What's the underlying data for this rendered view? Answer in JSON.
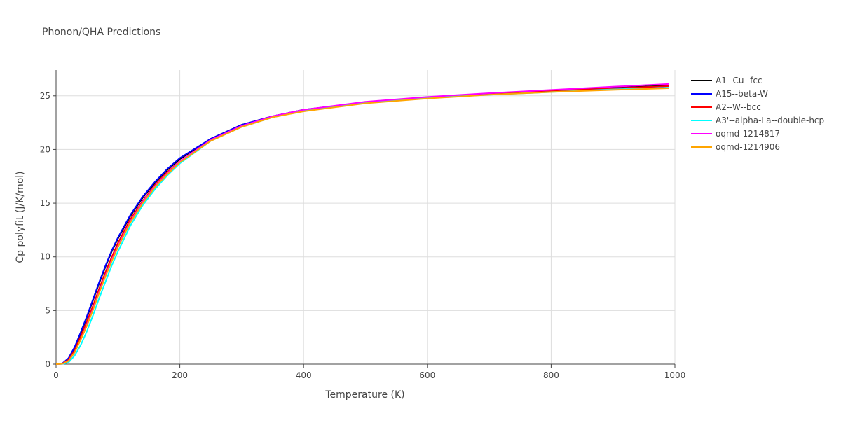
{
  "chart_data": {
    "type": "line",
    "title": "Phonon/QHA Predictions",
    "x_label": "Temperature (K)",
    "y_label": "Cp polyfit (J/K/mol)",
    "x": [
      0,
      10,
      20,
      30,
      40,
      50,
      60,
      70,
      80,
      90,
      100,
      120,
      140,
      160,
      180,
      200,
      250,
      300,
      350,
      400,
      500,
      600,
      700,
      800,
      900,
      990
    ],
    "series": [
      {
        "name": "A1--Cu--fcc",
        "color": "#000000",
        "values": [
          0,
          0.05,
          0.5,
          1.5,
          2.9,
          4.4,
          6.0,
          7.6,
          9.1,
          10.5,
          11.7,
          13.8,
          15.5,
          16.9,
          18.1,
          19.1,
          21.0,
          22.3,
          23.1,
          23.7,
          24.4,
          24.85,
          25.2,
          25.5,
          25.75,
          25.95
        ]
      },
      {
        "name": "A15--beta-W",
        "color": "#0000ff",
        "values": [
          0,
          0.06,
          0.55,
          1.6,
          3.0,
          4.5,
          6.1,
          7.7,
          9.2,
          10.6,
          11.8,
          13.9,
          15.6,
          17.0,
          18.2,
          19.2,
          21.0,
          22.3,
          23.1,
          23.7,
          24.4,
          24.85,
          25.2,
          25.5,
          25.7,
          25.9
        ]
      },
      {
        "name": "A2--W--bcc",
        "color": "#ff0000",
        "values": [
          0,
          0.04,
          0.4,
          1.3,
          2.6,
          4.0,
          5.5,
          7.1,
          8.6,
          10.0,
          11.3,
          13.5,
          15.2,
          16.7,
          17.9,
          18.9,
          20.9,
          22.2,
          23.0,
          23.6,
          24.35,
          24.8,
          25.15,
          25.45,
          25.7,
          25.9
        ]
      },
      {
        "name": "A3'--alpha-La--double-hcp",
        "color": "#00ffff",
        "values": [
          0,
          0.02,
          0.15,
          0.8,
          1.8,
          3.1,
          4.6,
          6.2,
          7.7,
          9.2,
          10.5,
          12.9,
          14.8,
          16.3,
          17.6,
          18.7,
          20.8,
          22.1,
          23.0,
          23.6,
          24.35,
          24.8,
          25.1,
          25.35,
          25.6,
          25.75
        ]
      },
      {
        "name": "oqmd-1214817",
        "color": "#ff00ff",
        "values": [
          0,
          0.03,
          0.3,
          1.1,
          2.3,
          3.7,
          5.2,
          6.8,
          8.3,
          9.7,
          11.0,
          13.3,
          15.1,
          16.6,
          17.8,
          18.9,
          20.9,
          22.2,
          23.1,
          23.7,
          24.45,
          24.9,
          25.25,
          25.55,
          25.85,
          26.1
        ]
      },
      {
        "name": "oqmd-1214906",
        "color": "#ffa500",
        "values": [
          0,
          0.03,
          0.3,
          1.1,
          2.3,
          3.6,
          5.1,
          6.7,
          8.2,
          9.6,
          10.9,
          13.2,
          15.0,
          16.5,
          17.7,
          18.8,
          20.8,
          22.1,
          23.0,
          23.55,
          24.3,
          24.75,
          25.1,
          25.35,
          25.55,
          25.7
        ]
      }
    ],
    "xlim": [
      0,
      1000
    ],
    "xticks": [
      0,
      200,
      400,
      600,
      800,
      1000
    ],
    "ylim": [
      0,
      27.4
    ],
    "yticks": [
      0,
      5,
      10,
      15,
      20,
      25
    ],
    "grid": true
  }
}
